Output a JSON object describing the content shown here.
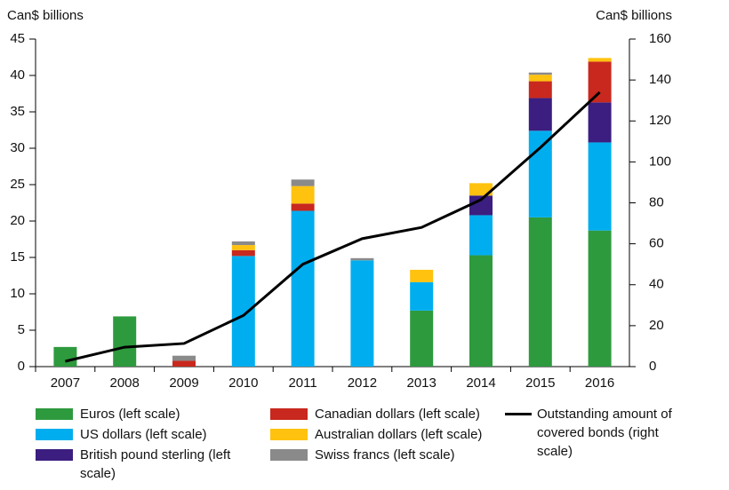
{
  "chart_data": {
    "type": "bar-line",
    "ylabel": "Can$ billions",
    "y2label": "Can$ billions",
    "categories": [
      "2007",
      "2008",
      "2009",
      "2010",
      "2011",
      "2012",
      "2013",
      "2014",
      "2015",
      "2016"
    ],
    "series": [
      {
        "name": "Euros (left scale)",
        "color": "#2e9a3e",
        "type": "bar",
        "values": [
          2.7,
          6.9,
          null,
          null,
          null,
          null,
          7.7,
          15.3,
          20.5,
          18.7
        ]
      },
      {
        "name": "US dollars (left scale)",
        "color": "#00aeef",
        "type": "bar",
        "values": [
          null,
          null,
          null,
          15.2,
          21.4,
          14.6,
          3.9,
          5.5,
          11.9,
          12.1
        ]
      },
      {
        "name": "British pound sterling (left scale)",
        "color": "#3b1e7f",
        "type": "bar",
        "values": [
          null,
          null,
          null,
          null,
          null,
          null,
          null,
          2.7,
          4.5,
          5.5
        ]
      },
      {
        "name": "Canadian dollars (left scale)",
        "color": "#c8281e",
        "type": "bar",
        "values": [
          null,
          null,
          0.8,
          0.8,
          1.0,
          null,
          null,
          null,
          2.3,
          5.6
        ]
      },
      {
        "name": "Australian dollars (left scale)",
        "color": "#ffc20e",
        "type": "bar",
        "values": [
          null,
          null,
          null,
          0.7,
          2.4,
          null,
          1.7,
          1.7,
          0.9,
          0.5
        ]
      },
      {
        "name": "Swiss francs (left scale)",
        "color": "#8a8a8a",
        "type": "bar",
        "values": [
          null,
          null,
          0.7,
          0.5,
          0.9,
          0.3,
          null,
          null,
          0.3,
          null
        ]
      },
      {
        "name": "Outstanding amount of covered bonds (right scale)",
        "color": "#000000",
        "type": "line",
        "axis": "y2",
        "values": [
          2.6,
          9.5,
          11.3,
          25,
          50,
          62.5,
          68,
          81.5,
          107,
          134
        ]
      }
    ],
    "ylim": [
      0,
      45
    ],
    "yticks": [
      0,
      5,
      10,
      15,
      20,
      25,
      30,
      35,
      40,
      45
    ],
    "y2lim": [
      0,
      160
    ],
    "y2ticks": [
      0,
      20,
      40,
      60,
      80,
      100,
      120,
      140,
      160
    ]
  }
}
